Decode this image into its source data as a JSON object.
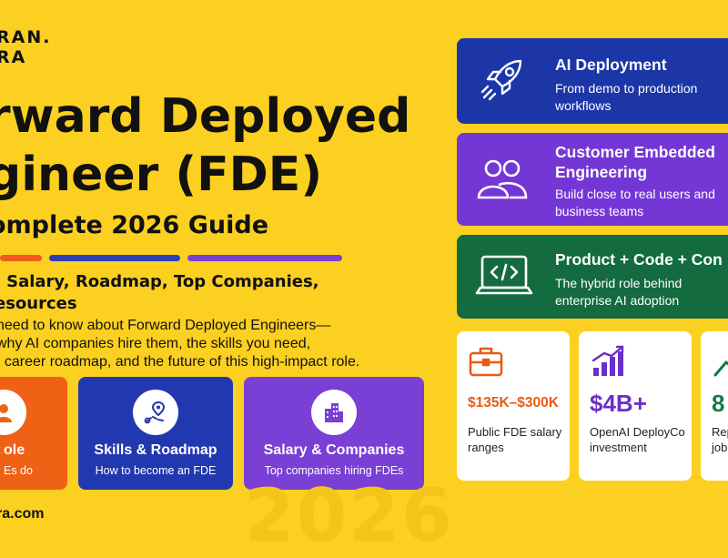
{
  "brand": {
    "line1": "RAN.",
    "line2": "RA"
  },
  "hero": {
    "title_line1": "rward Deployed",
    "title_line2": "gineer (FDE)",
    "subtitle": "omplete 2026 Guide",
    "tagline_line1": ", Salary, Roadmap, Top Companies,",
    "tagline_line2": "esources",
    "intro_line1": "need to know about Forward Deployed Engineers—",
    "intro_line2": "why AI companies hire them, the skills you need,",
    "intro_line3": ", career roadmap, and the future of this high-impact role."
  },
  "accent_bars": [
    "#f05a1a",
    "#2b3fb8",
    "#7b3fd6"
  ],
  "cta_cards": [
    {
      "title": "ole",
      "subtitle": "Es do",
      "color": "#ef6216",
      "icon": "person-icon"
    },
    {
      "title": "Skills & Roadmap",
      "subtitle": "How to become an FDE",
      "color": "#2238b0",
      "icon": "map-route-icon"
    },
    {
      "title": "Salary & Companies",
      "subtitle": "Top companies hiring FDEs",
      "color": "#7a3fd4",
      "icon": "building-icon"
    }
  ],
  "website": "ra.com",
  "watermark": "2026",
  "features": [
    {
      "title_line1": "AI Deployment",
      "title_line2": "",
      "desc_line1": "From demo to production",
      "desc_line2": "workflows",
      "color": "#1c36a8",
      "icon": "rocket-icon"
    },
    {
      "title_line1": "Customer Embedded",
      "title_line2": "Engineering",
      "desc_line1": "Build close to real users and",
      "desc_line2": "business teams",
      "color": "#7437d6",
      "icon": "users-icon"
    },
    {
      "title_line1": "Product + Code + Con",
      "title_line2": "",
      "desc_line1": "The hybrid role behind",
      "desc_line2": "enterprise AI adoption",
      "color": "#136b3f",
      "icon": "laptop-code-icon"
    }
  ],
  "stats": [
    {
      "value": "$135K–$300K",
      "label_line1": "Public FDE salary",
      "label_line2": "ranges",
      "color": "#ea5a14",
      "icon": "briefcase-icon"
    },
    {
      "value": "$4B+",
      "label_line1": "OpenAI DeployCo",
      "label_line2": "investment",
      "color": "#6a2fc8",
      "icon": "bar-chart-icon"
    },
    {
      "value": "8",
      "label_line1": "Rep",
      "label_line2": "job",
      "color": "#137a46",
      "icon": "trend-up-icon"
    }
  ]
}
